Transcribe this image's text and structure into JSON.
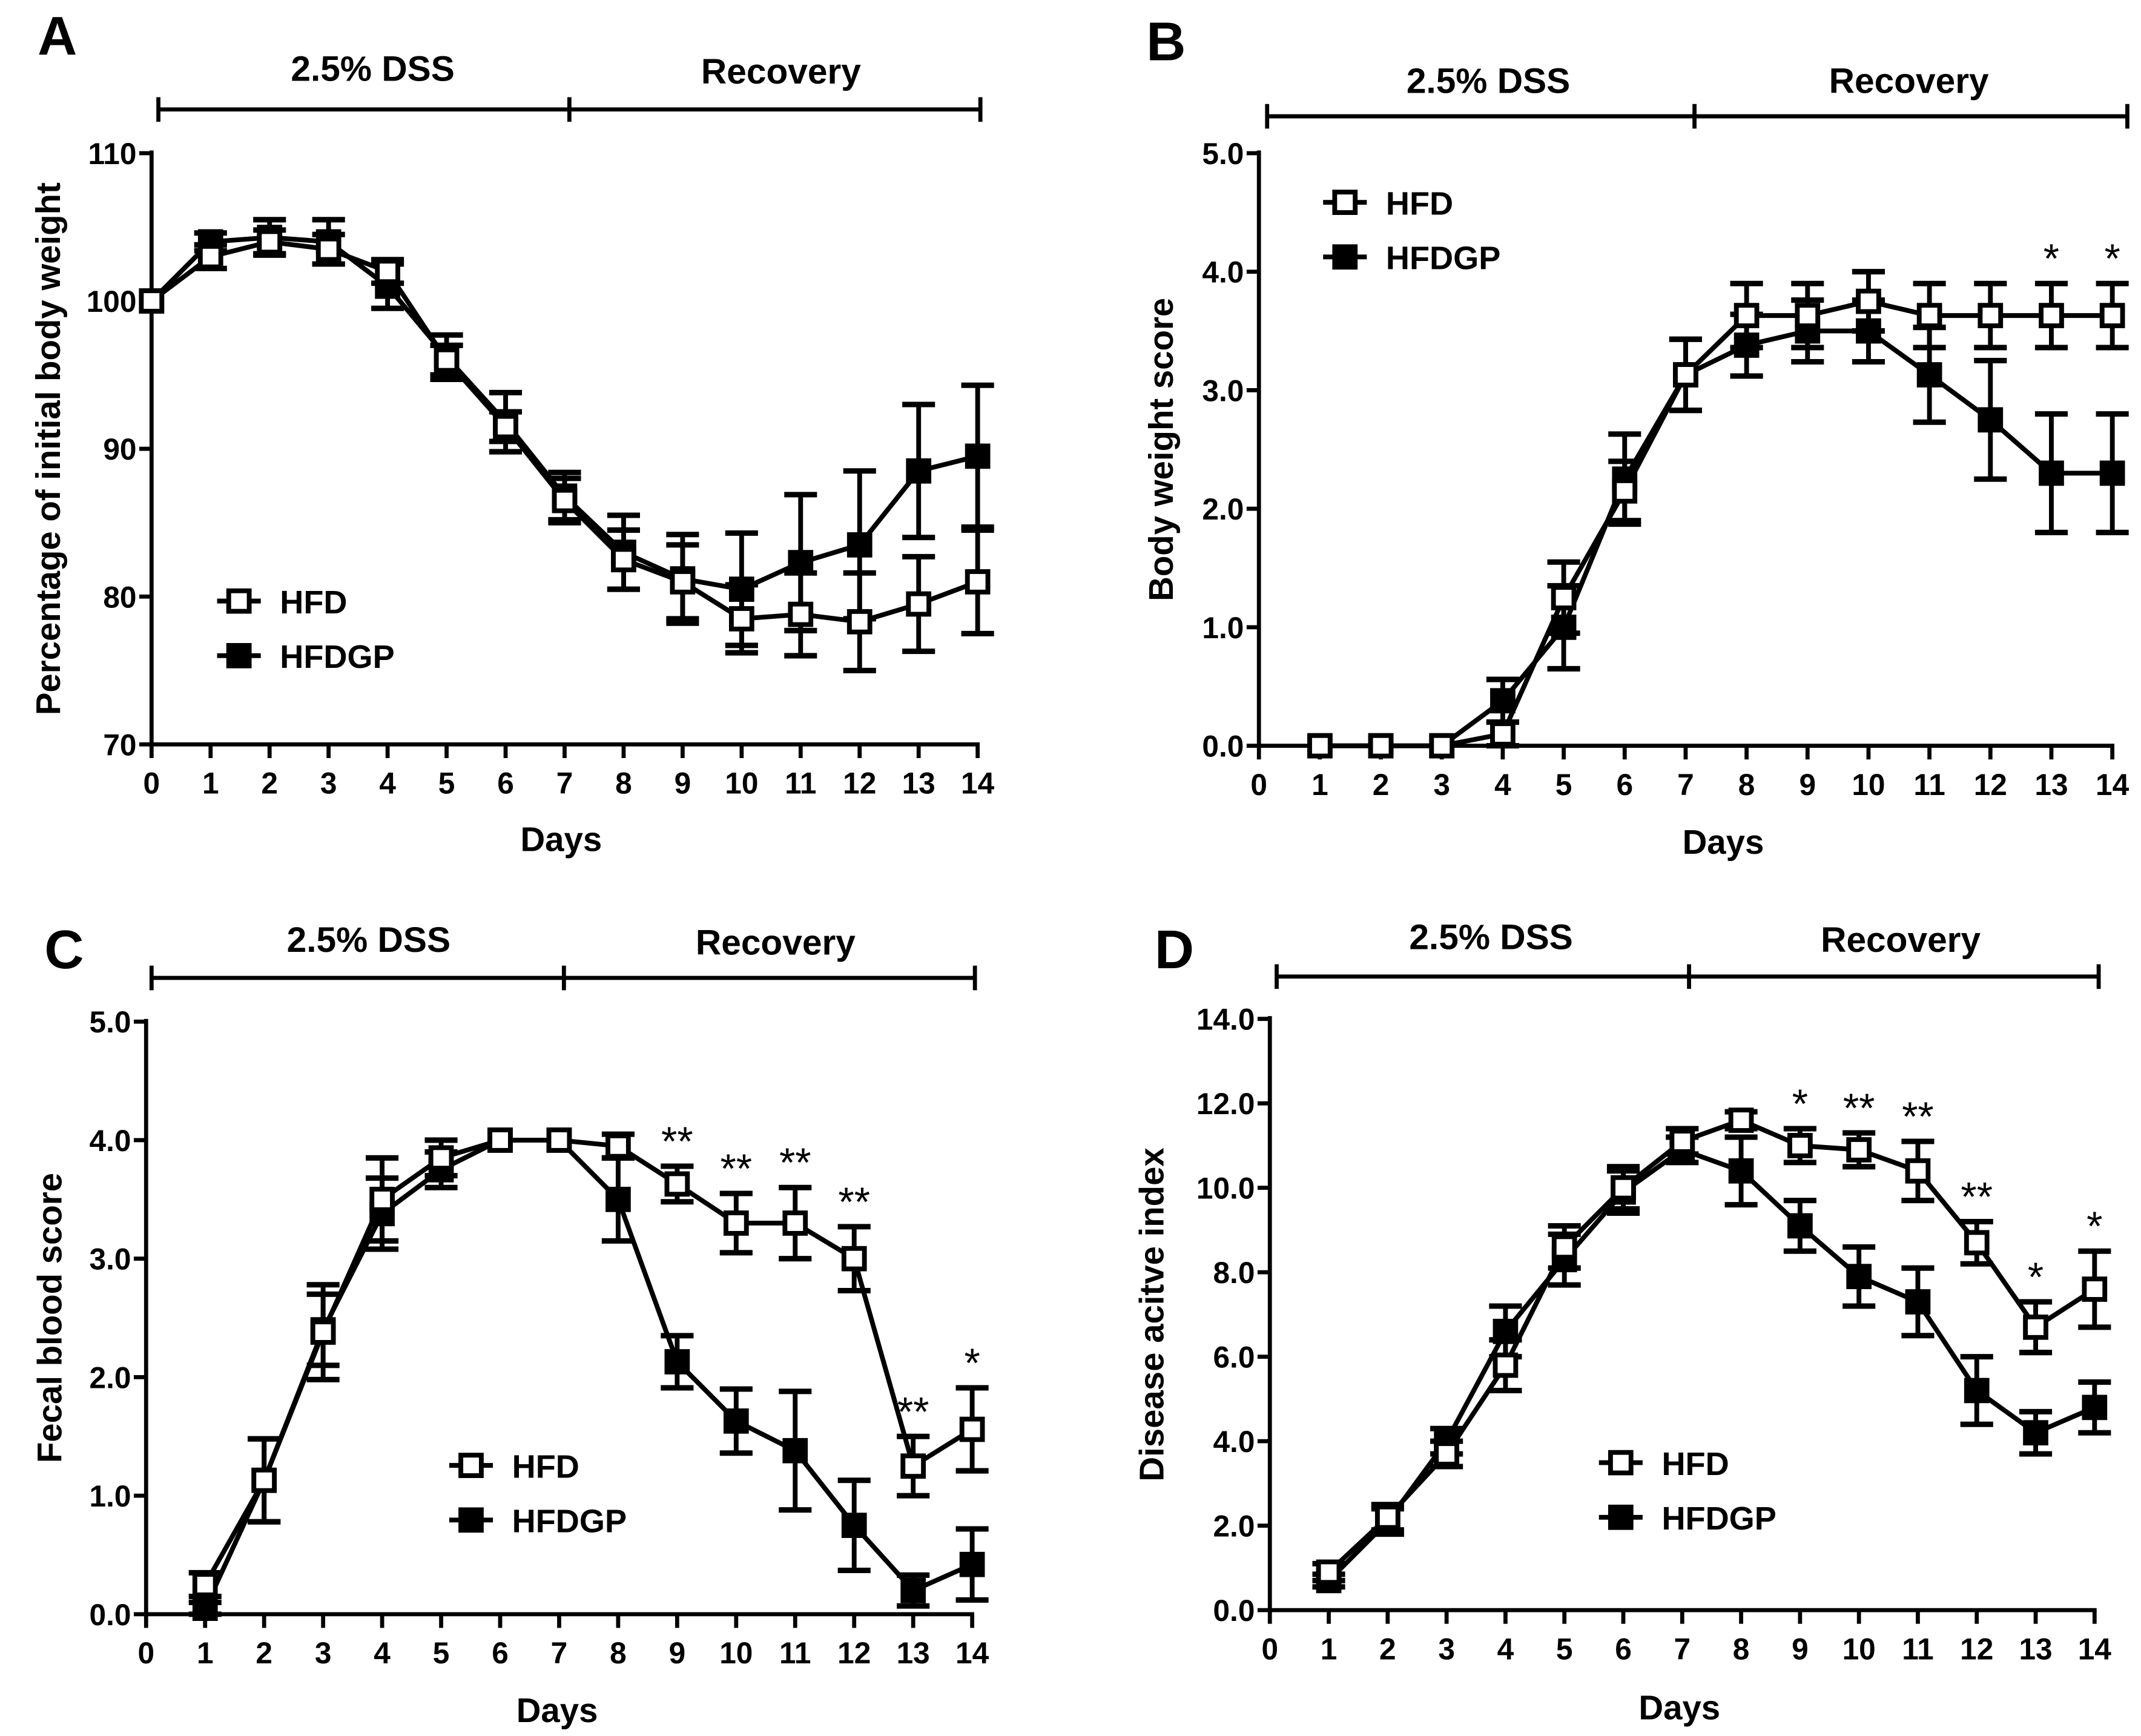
{
  "colors": {
    "ink": "#000000",
    "background": "#ffffff"
  },
  "chart_data": [
    {
      "panel": "A",
      "type": "line",
      "phase_labels": [
        "2.5% DSS",
        "Recovery"
      ],
      "xlabel": "Days",
      "ylabel": "Percentage of initial body weight",
      "xlim": [
        0,
        14
      ],
      "ylim": [
        70,
        110
      ],
      "x_ticks": [
        "0",
        "1",
        "2",
        "3",
        "4",
        "5",
        "6",
        "7",
        "8",
        "9",
        "10",
        "11",
        "12",
        "13",
        "14"
      ],
      "y_ticks": [
        "70",
        "80",
        "90",
        "100",
        "110"
      ],
      "legend": [
        "HFD",
        "HFDGP"
      ],
      "legend_position": "lower-left",
      "x": [
        0,
        1,
        2,
        3,
        4,
        5,
        6,
        7,
        8,
        9,
        10,
        11,
        12,
        13,
        14
      ],
      "series": [
        {
          "name": "HFD",
          "marker": "open-square",
          "values": [
            100,
            103,
            104,
            103.5,
            102,
            96,
            91.5,
            86.5,
            82.5,
            81,
            78.5,
            78.8,
            78.3,
            79.5,
            81
          ],
          "errors": [
            0,
            0.8,
            0.8,
            1,
            0.8,
            1,
            1,
            1.5,
            2,
            2.5,
            2.3,
            2.8,
            3.3,
            3.2,
            3.5
          ]
        },
        {
          "name": "HFDGP",
          "marker": "filled-square",
          "values": [
            100,
            104,
            104.3,
            104,
            101,
            96.2,
            91.8,
            86.8,
            83,
            81.2,
            80.5,
            82.3,
            83.5,
            88.5,
            89.5
          ],
          "errors": [
            0,
            0.6,
            1.2,
            1.5,
            1.5,
            1.5,
            2,
            1.6,
            2.5,
            3,
            3.8,
            4.6,
            5,
            4.5,
            4.8
          ]
        }
      ],
      "annotations": []
    },
    {
      "panel": "B",
      "type": "line",
      "phase_labels": [
        "2.5% DSS",
        "Recovery"
      ],
      "xlabel": "Days",
      "ylabel": "Body weight score",
      "xlim": [
        0,
        14
      ],
      "ylim": [
        0,
        5
      ],
      "x_ticks": [
        "0",
        "1",
        "2",
        "3",
        "4",
        "5",
        "6",
        "7",
        "8",
        "9",
        "10",
        "11",
        "12",
        "13",
        "14"
      ],
      "y_ticks": [
        "0.0",
        "1.0",
        "2.0",
        "3.0",
        "4.0",
        "5.0"
      ],
      "legend": [
        "HFD",
        "HFDGP"
      ],
      "legend_position": "upper-left",
      "x": [
        1,
        2,
        3,
        4,
        5,
        6,
        7,
        8,
        9,
        10,
        11,
        12,
        13,
        14
      ],
      "series": [
        {
          "name": "HFD",
          "marker": "open-square",
          "values": [
            0,
            0,
            0,
            0.1,
            1.25,
            2.15,
            3.13,
            3.63,
            3.63,
            3.75,
            3.63,
            3.63,
            3.63,
            3.63
          ],
          "errors": [
            0,
            0,
            0,
            0.1,
            0.3,
            0.25,
            0.3,
            0.27,
            0.27,
            0.25,
            0.27,
            0.27,
            0.27,
            0.27
          ]
        },
        {
          "name": "HFDGP",
          "marker": "filled-square",
          "values": [
            0,
            0,
            0,
            0.38,
            1.0,
            2.25,
            3.13,
            3.38,
            3.5,
            3.5,
            3.13,
            2.75,
            2.3,
            2.3
          ],
          "errors": [
            0,
            0,
            0,
            0.18,
            0.35,
            0.38,
            0.3,
            0.26,
            0.26,
            0.26,
            0.4,
            0.5,
            0.5,
            0.5
          ]
        }
      ],
      "annotations": [
        {
          "day": 13,
          "text": "*"
        },
        {
          "day": 14,
          "text": "*"
        }
      ]
    },
    {
      "panel": "C",
      "type": "line",
      "phase_labels": [
        "2.5% DSS",
        "Recovery"
      ],
      "xlabel": "Days",
      "ylabel": "Fecal blood score",
      "xlim": [
        0,
        14
      ],
      "ylim": [
        0,
        5
      ],
      "x_ticks": [
        "0",
        "1",
        "2",
        "3",
        "4",
        "5",
        "6",
        "7",
        "8",
        "9",
        "10",
        "11",
        "12",
        "13",
        "14"
      ],
      "y_ticks": [
        "0.0",
        "1.0",
        "2.0",
        "3.0",
        "4.0",
        "5.0"
      ],
      "legend": [
        "HFD",
        "HFDGP"
      ],
      "legend_position": "lower-center",
      "x": [
        1,
        2,
        3,
        4,
        5,
        6,
        7,
        8,
        9,
        10,
        11,
        12,
        13,
        14
      ],
      "series": [
        {
          "name": "HFD",
          "marker": "open-square",
          "values": [
            0.25,
            1.13,
            2.38,
            3.5,
            3.85,
            4,
            4,
            3.95,
            3.63,
            3.3,
            3.3,
            3.0,
            1.25,
            1.56
          ],
          "errors": [
            0.1,
            0.35,
            0.4,
            0.35,
            0.15,
            0,
            0,
            0.1,
            0.15,
            0.25,
            0.3,
            0.27,
            0.25,
            0.35
          ]
        },
        {
          "name": "HFDGP",
          "marker": "filled-square",
          "values": [
            0.05,
            1.13,
            2.4,
            3.38,
            3.75,
            4,
            4,
            3.5,
            2.13,
            1.63,
            1.38,
            0.75,
            0.2,
            0.42
          ],
          "errors": [
            0.05,
            0.35,
            0.3,
            0.3,
            0.15,
            0,
            0,
            0.35,
            0.22,
            0.27,
            0.5,
            0.38,
            0.13,
            0.3
          ]
        }
      ],
      "annotations": [
        {
          "day": 9,
          "text": "**"
        },
        {
          "day": 10,
          "text": "**"
        },
        {
          "day": 11,
          "text": "**"
        },
        {
          "day": 12,
          "text": "**"
        },
        {
          "day": 13,
          "text": "**"
        },
        {
          "day": 14,
          "text": "*"
        }
      ]
    },
    {
      "panel": "D",
      "type": "line",
      "phase_labels": [
        "2.5% DSS",
        "Recovery"
      ],
      "xlabel": "Days",
      "ylabel": "Disease acitve index",
      "xlim": [
        0,
        14
      ],
      "ylim": [
        0,
        14
      ],
      "x_ticks": [
        "0",
        "1",
        "2",
        "3",
        "4",
        "5",
        "6",
        "7",
        "8",
        "9",
        "10",
        "11",
        "12",
        "13",
        "14"
      ],
      "y_ticks": [
        "0.0",
        "2.0",
        "4.0",
        "6.0",
        "8.0",
        "10.0",
        "12.0",
        "14.0"
      ],
      "legend": [
        "HFD",
        "HFDGP"
      ],
      "legend_position": "lower-center",
      "x": [
        1,
        2,
        3,
        4,
        5,
        6,
        7,
        8,
        9,
        10,
        11,
        12,
        13,
        14
      ],
      "series": [
        {
          "name": "HFD",
          "marker": "open-square",
          "values": [
            0.9,
            2.2,
            3.7,
            5.8,
            8.6,
            10,
            11.1,
            11.6,
            11,
            10.9,
            10.4,
            8.7,
            6.7,
            7.6
          ],
          "errors": [
            0.2,
            0.3,
            0.3,
            0.6,
            0.5,
            0.5,
            0.3,
            0.2,
            0.4,
            0.4,
            0.7,
            0.5,
            0.6,
            0.9
          ]
        },
        {
          "name": "HFDGP",
          "marker": "filled-square",
          "values": [
            0.7,
            2.1,
            4.0,
            6.6,
            8.3,
            9.9,
            10.9,
            10.4,
            9.1,
            7.9,
            7.3,
            5.2,
            4.2,
            4.8
          ],
          "errors": [
            0.15,
            0.3,
            0.3,
            0.6,
            0.6,
            0.5,
            0.3,
            0.8,
            0.6,
            0.7,
            0.8,
            0.8,
            0.5,
            0.6
          ]
        }
      ],
      "annotations": [
        {
          "day": 9,
          "text": "*"
        },
        {
          "day": 10,
          "text": "**"
        },
        {
          "day": 11,
          "text": "**"
        },
        {
          "day": 12,
          "text": "**"
        },
        {
          "day": 13,
          "text": "*"
        },
        {
          "day": 14,
          "text": "*"
        }
      ]
    }
  ]
}
